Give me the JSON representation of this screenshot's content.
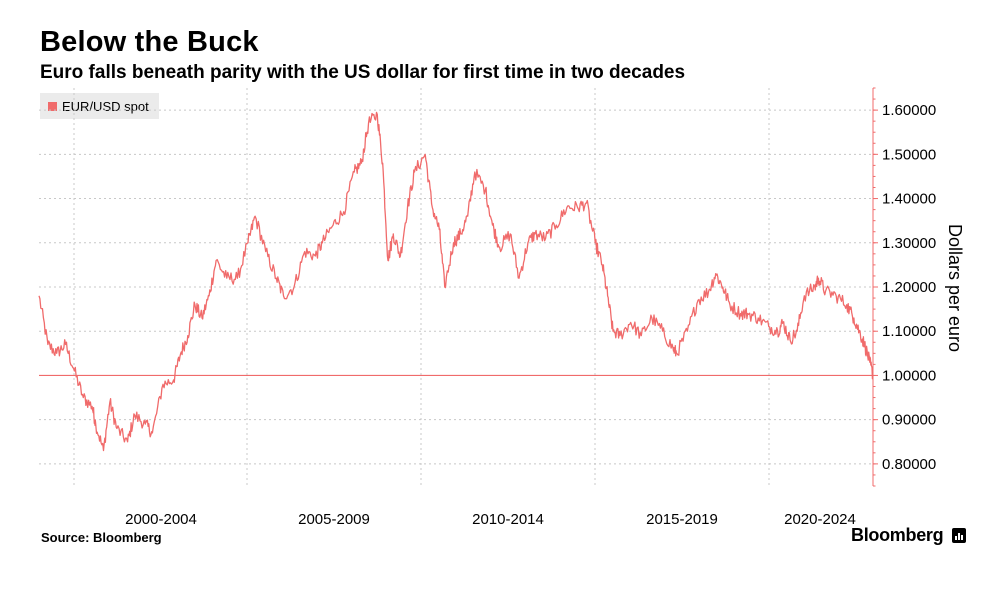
{
  "title": "Below the Buck",
  "subtitle": "Euro falls beneath parity with the US dollar for first time in two decades",
  "source": "Source: Bloomberg",
  "brand": "Bloomberg",
  "brand_icon": "chart-bars-icon",
  "colors": {
    "series": "#f06b6b",
    "grid": "#c8c8c8",
    "text": "#000000",
    "legend_bg": "#ebebeb"
  },
  "chart_data": {
    "type": "line",
    "title": "Below the Buck",
    "subtitle": "Euro falls beneath parity with the US dollar for first time in two decades",
    "xlabel": "",
    "ylabel": "Dollars per euro",
    "x_tick_labels": [
      "2000-2004",
      "2005-2009",
      "2010-2014",
      "2015-2019",
      "2020-2024"
    ],
    "y_ticks": [
      "0.80000",
      "0.90000",
      "1.00000",
      "1.10000",
      "1.20000",
      "1.30000",
      "1.40000",
      "1.50000",
      "1.60000"
    ],
    "ylim": [
      0.75,
      1.65
    ],
    "xlim": [
      1999.0,
      2022.54
    ],
    "grid": true,
    "legend_position": "top-left",
    "reference_line": {
      "y": 1.0
    },
    "series": [
      {
        "name": "EUR/USD spot",
        "x": [
          1999.0,
          1999.25,
          1999.5,
          1999.75,
          2000.0,
          2000.25,
          2000.5,
          2000.6,
          2000.82,
          2001.0,
          2001.2,
          2001.5,
          2001.7,
          2002.0,
          2002.2,
          2002.5,
          2002.8,
          2003.0,
          2003.2,
          2003.4,
          2003.6,
          2003.8,
          2004.0,
          2004.3,
          2004.6,
          2004.9,
          2005.1,
          2005.4,
          2005.7,
          2005.9,
          2006.2,
          2006.5,
          2006.8,
          2007.0,
          2007.3,
          2007.6,
          2007.9,
          2008.1,
          2008.3,
          2008.55,
          2008.7,
          2008.85,
          2009.0,
          2009.2,
          2009.4,
          2009.6,
          2009.9,
          2010.1,
          2010.3,
          2010.45,
          2010.7,
          2010.9,
          2011.1,
          2011.3,
          2011.6,
          2011.8,
          2012.0,
          2012.3,
          2012.55,
          2012.8,
          2013.0,
          2013.3,
          2013.6,
          2013.9,
          2014.2,
          2014.45,
          2014.7,
          2014.9,
          2015.05,
          2015.2,
          2015.4,
          2015.7,
          2016.0,
          2016.3,
          2016.6,
          2016.9,
          2017.0,
          2017.3,
          2017.6,
          2017.9,
          2018.1,
          2018.3,
          2018.5,
          2018.8,
          2019.0,
          2019.3,
          2019.6,
          2019.85,
          2020.0,
          2020.2,
          2020.4,
          2020.6,
          2020.9,
          2021.0,
          2021.2,
          2021.5,
          2021.8,
          2022.0,
          2022.15,
          2022.3,
          2022.45,
          2022.54
        ],
        "values": [
          1.18,
          1.07,
          1.05,
          1.07,
          1.01,
          0.95,
          0.93,
          0.89,
          0.83,
          0.94,
          0.88,
          0.85,
          0.91,
          0.89,
          0.87,
          0.98,
          0.99,
          1.05,
          1.09,
          1.16,
          1.13,
          1.18,
          1.26,
          1.22,
          1.22,
          1.3,
          1.36,
          1.28,
          1.22,
          1.18,
          1.2,
          1.28,
          1.27,
          1.3,
          1.34,
          1.37,
          1.46,
          1.48,
          1.57,
          1.59,
          1.48,
          1.26,
          1.32,
          1.27,
          1.38,
          1.46,
          1.5,
          1.38,
          1.33,
          1.2,
          1.3,
          1.32,
          1.36,
          1.46,
          1.42,
          1.34,
          1.29,
          1.32,
          1.22,
          1.3,
          1.32,
          1.31,
          1.34,
          1.38,
          1.38,
          1.39,
          1.3,
          1.25,
          1.18,
          1.1,
          1.09,
          1.12,
          1.09,
          1.13,
          1.1,
          1.06,
          1.05,
          1.1,
          1.17,
          1.19,
          1.23,
          1.2,
          1.16,
          1.14,
          1.14,
          1.13,
          1.11,
          1.1,
          1.12,
          1.08,
          1.1,
          1.18,
          1.2,
          1.22,
          1.19,
          1.18,
          1.16,
          1.13,
          1.1,
          1.07,
          1.03,
          1.0
        ]
      }
    ]
  }
}
